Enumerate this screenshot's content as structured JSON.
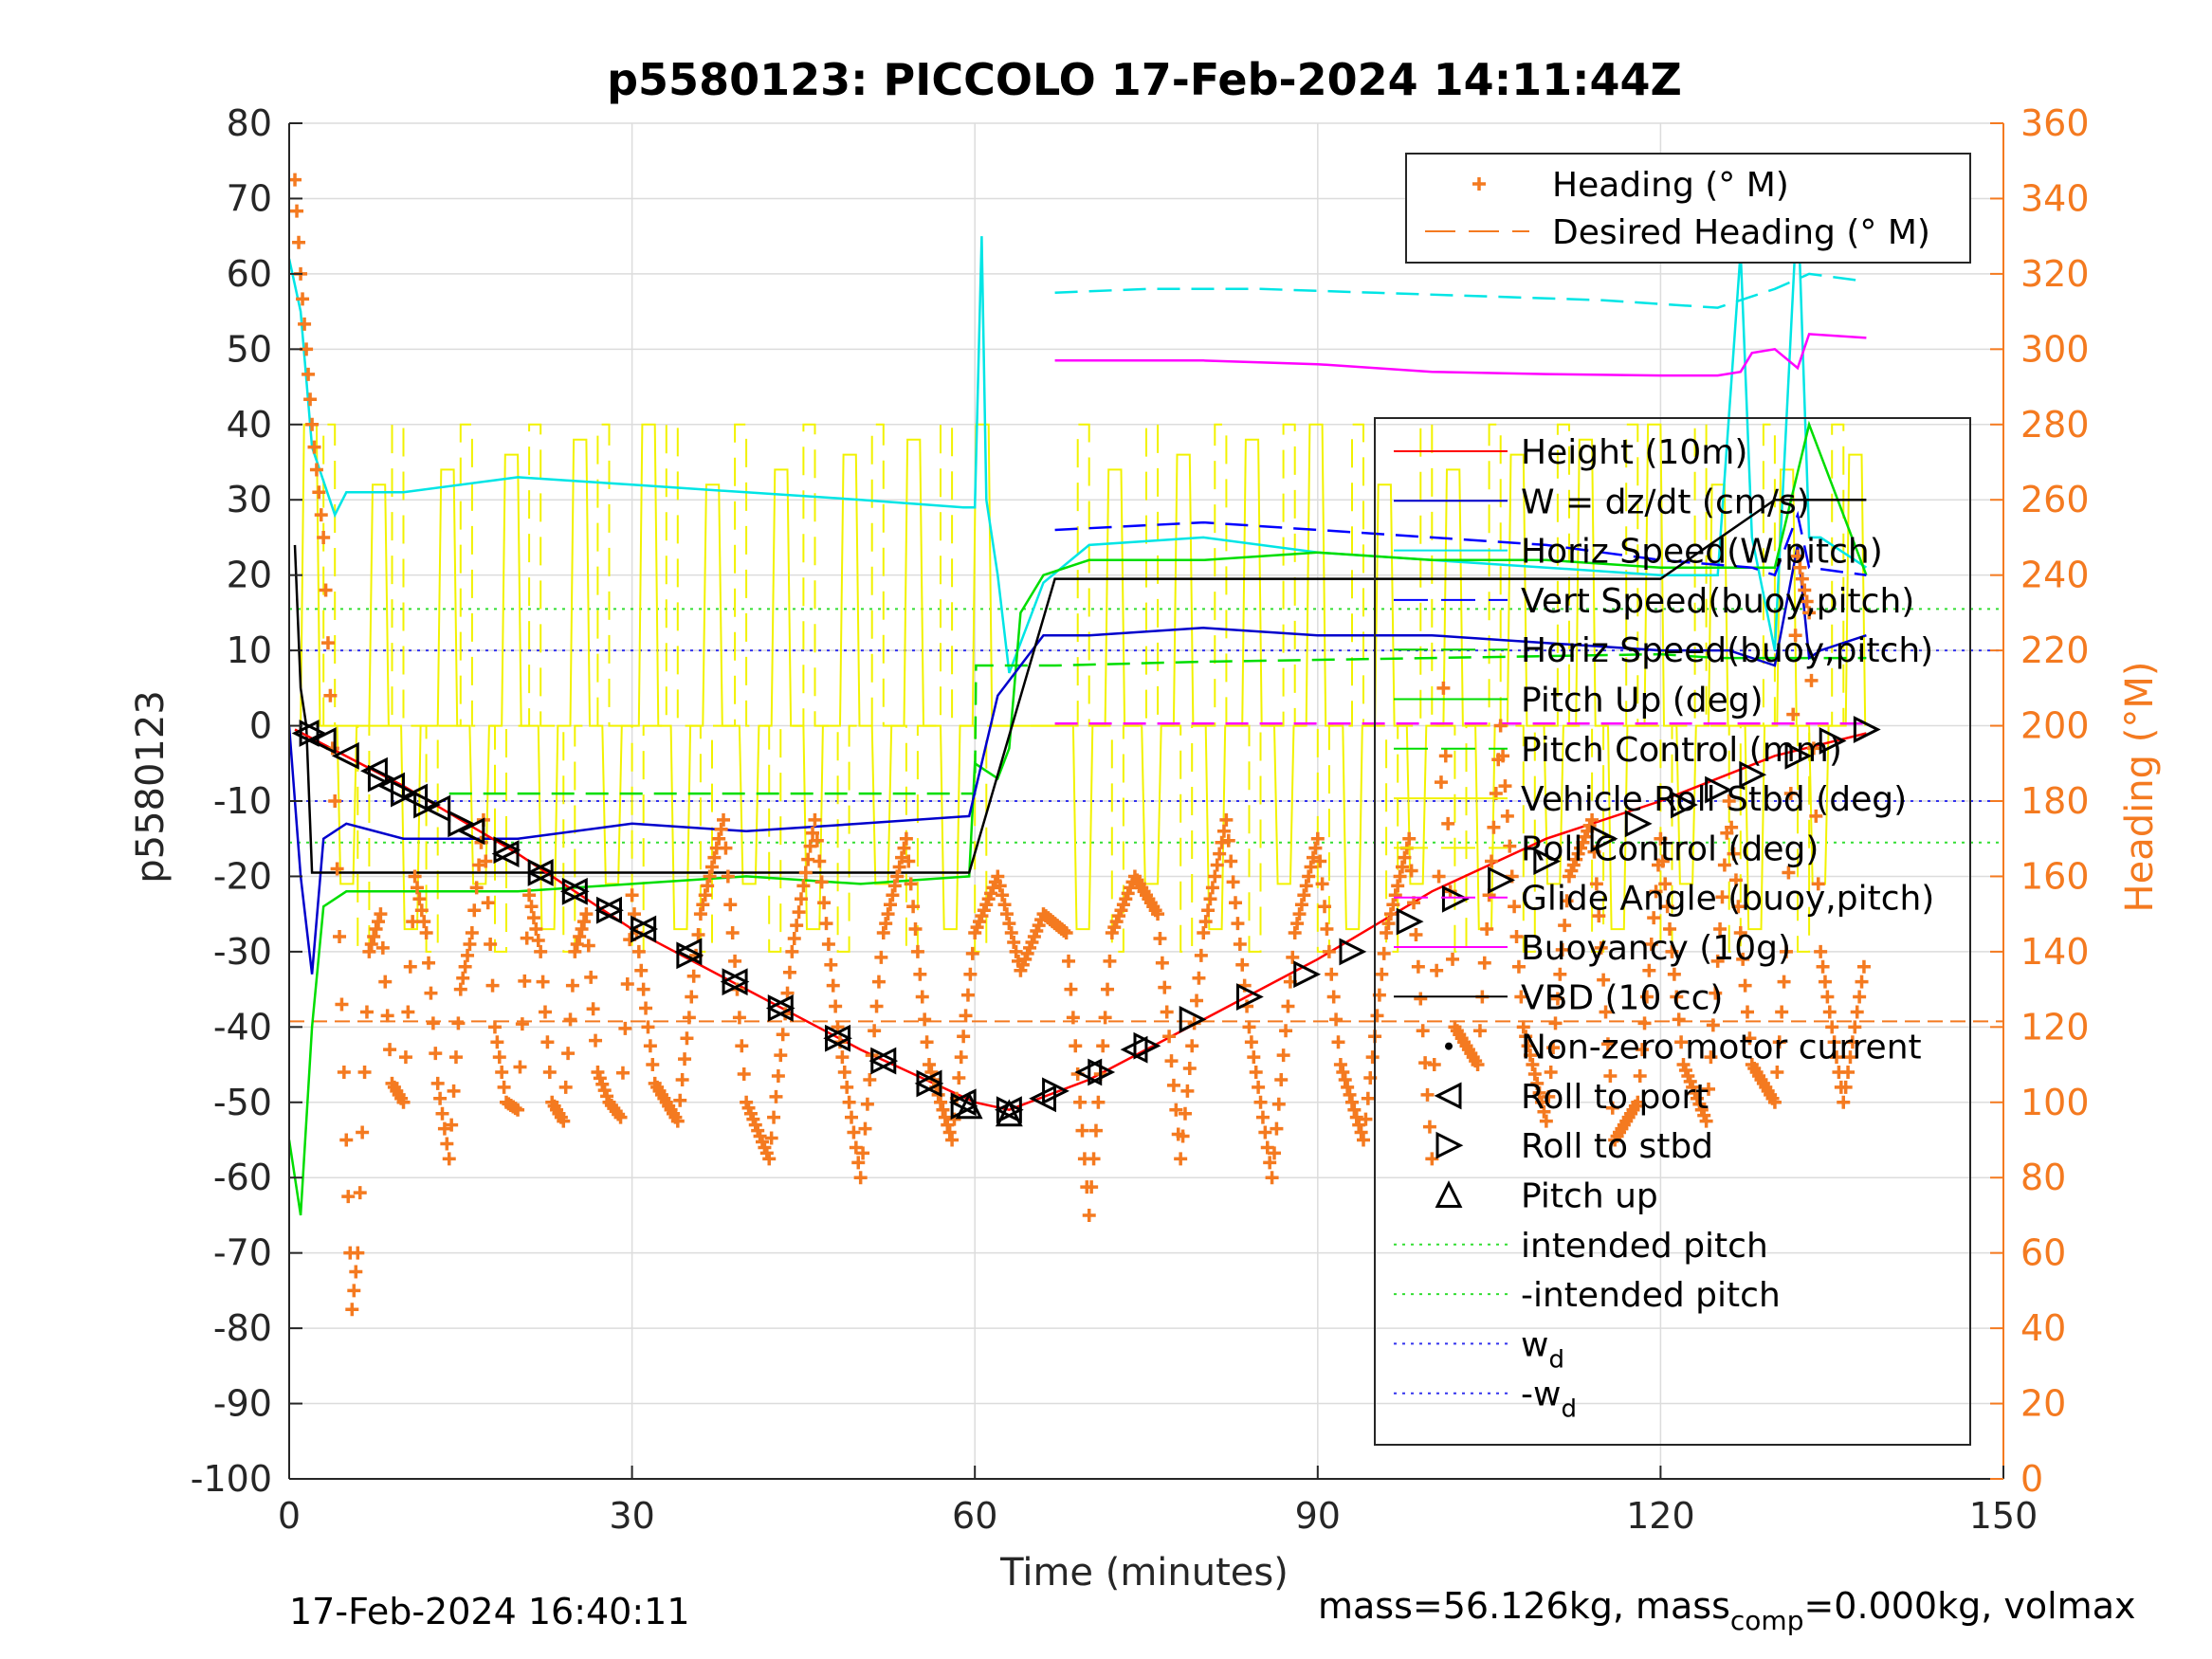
{
  "chart_data": {
    "type": "line",
    "title": "p5580123: PICCOLO 17-Feb-2024 14:11:44Z",
    "xlabel": "Time (minutes)",
    "ylabel": "p5580123",
    "y2label": "Heading (°M)",
    "xlim": [
      0,
      150
    ],
    "ylim": [
      -100,
      80
    ],
    "y2lim": [
      0,
      360
    ],
    "xticks": [
      0,
      30,
      60,
      90,
      120,
      150
    ],
    "yticks": [
      -100,
      -90,
      -80,
      -70,
      -60,
      -50,
      -40,
      -30,
      -20,
      -10,
      0,
      10,
      20,
      30,
      40,
      50,
      60,
      70,
      80
    ],
    "y2ticks": [
      0,
      20,
      40,
      60,
      80,
      100,
      120,
      140,
      160,
      180,
      200,
      220,
      240,
      260,
      280,
      300,
      320,
      340,
      360
    ],
    "grid": true,
    "colors": {
      "heading": "#F47A20",
      "desired_heading": "#F47A20",
      "height": "#FF0000",
      "w": "#0000CC",
      "horiz_speed_w": "#00E5E5",
      "vert_speed_buoy": "#0000FF",
      "horiz_speed_buoy": "#00CC00",
      "pitch_up": "#00DD00",
      "pitch_control": "#00DD00",
      "vehicle_roll": "#F2F200",
      "roll_control": "#F2F200",
      "glide_angle": "#FF00FF",
      "buoyancy": "#FF00FF",
      "vbd": "#000000",
      "intended_pitch": "#33DD33",
      "wd": "#3333EE"
    },
    "heading_legend": {
      "placement": "top-right",
      "entries": [
        "Heading (° M)",
        "Desired Heading (° M)"
      ]
    },
    "legend": {
      "placement": "right",
      "entries": [
        {
          "label": "Height (10m)"
        },
        {
          "label": "W = dz/dt (cm/s)"
        },
        {
          "label": "Horiz Speed(W,pitch)"
        },
        {
          "label": "Vert Speed(buoy,pitch)"
        },
        {
          "label": "Horiz Speed(buoy,pitch)"
        },
        {
          "label": "Pitch Up (deg)"
        },
        {
          "label": "Pitch Control (mm)"
        },
        {
          "label": "Vehicle Roll Stbd (deg)"
        },
        {
          "label": "Roll Control (deg)"
        },
        {
          "label": "Glide Angle (buoy,pitch)"
        },
        {
          "label": "Buoyancy (10g)"
        },
        {
          "label": "VBD (10 cc)"
        },
        {
          "label": "Non-zero motor current"
        },
        {
          "label": "Roll to port"
        },
        {
          "label": "Roll to stbd"
        },
        {
          "label": "Pitch up"
        },
        {
          "label": "intended pitch"
        },
        {
          "label": "-intended pitch"
        },
        {
          "label": "w",
          "sub": "d"
        },
        {
          "label": "-w",
          "sub": "d"
        }
      ]
    },
    "series": [
      {
        "name": "Height (10m)",
        "x": [
          0.5,
          10,
          20,
          30,
          40,
          50,
          60,
          63,
          70,
          80,
          90,
          100,
          110,
          120,
          130,
          138
        ],
        "values": [
          -0.5,
          -8,
          -17,
          -27,
          -35,
          -43,
          -50,
          -51,
          -47,
          -39,
          -31,
          -22,
          -15,
          -10,
          -4,
          -1
        ]
      },
      {
        "name": "W = dz/dt (cm/s)",
        "x": [
          0,
          1,
          2,
          3,
          5,
          10,
          20,
          30,
          40,
          50,
          59.5,
          62,
          66,
          70,
          80,
          90,
          100,
          110,
          120,
          126,
          130,
          132,
          133,
          134,
          138
        ],
        "values": [
          0,
          -20,
          -33,
          -15,
          -13,
          -15,
          -15,
          -13,
          -14,
          -13,
          -12,
          4,
          12,
          12,
          13,
          12,
          12,
          11,
          10,
          10,
          8,
          24,
          9,
          10,
          12
        ]
      },
      {
        "name": "Horiz Speed(W,pitch)",
        "x": [
          0,
          1,
          2,
          4,
          5,
          10,
          20,
          30,
          40,
          50,
          59,
          60,
          60.6,
          61,
          62,
          63,
          66,
          70,
          80,
          90,
          100,
          110,
          120,
          125,
          127,
          128,
          130,
          132,
          133,
          134,
          138
        ],
        "values": [
          62,
          55,
          37,
          28,
          31,
          31,
          33,
          32,
          31,
          30,
          29,
          29,
          65,
          30,
          20,
          7,
          19,
          24,
          25,
          23,
          22,
          21,
          20,
          20,
          63,
          25,
          10,
          70,
          25,
          25,
          21
        ]
      },
      {
        "name": "Vert Speed(buoy,pitch)",
        "x": [
          67,
          80,
          90,
          100,
          110,
          120,
          128,
          130,
          132,
          133,
          138
        ],
        "values": [
          26,
          27,
          26,
          25,
          24,
          22,
          21,
          20,
          28,
          21,
          20
        ]
      },
      {
        "name": "Horiz Speed(buoy,pitch)",
        "x": [
          67,
          75,
          85,
          95,
          105,
          115,
          125,
          130,
          133,
          138
        ],
        "values": [
          57.5,
          58,
          58,
          57.5,
          57,
          56.5,
          55.5,
          58,
          60,
          59
        ]
      },
      {
        "name": "Pitch Up (deg)",
        "x": [
          0,
          1,
          2,
          3,
          5,
          10,
          20,
          30,
          40,
          50,
          59.5,
          60,
          62,
          63,
          64,
          66,
          70,
          80,
          90,
          100,
          110,
          120,
          130,
          133,
          138
        ],
        "values": [
          -55,
          -65,
          -40,
          -24,
          -22,
          -22,
          -22,
          -21,
          -20,
          -21,
          -20,
          -5,
          -7,
          -3,
          15,
          20,
          22,
          22,
          23,
          22,
          22,
          21,
          21,
          40,
          20
        ]
      },
      {
        "name": "Pitch Control (mm)",
        "x": [
          14,
          60,
          60.1,
          67,
          80,
          100,
          120,
          125,
          138
        ],
        "values": [
          -9,
          -9,
          8,
          8,
          8.5,
          9,
          9.5,
          9,
          9
        ]
      },
      {
        "name": "Glide Angle (buoy,pitch)",
        "x": [
          67,
          80,
          90,
          100,
          110,
          120,
          125,
          127,
          128,
          130,
          132,
          133,
          138
        ],
        "values": [
          48.5,
          48.5,
          48,
          47,
          46.7,
          46.5,
          46.5,
          47,
          49.5,
          50,
          47.5,
          52,
          51.5
        ]
      },
      {
        "name": "Buoyancy (10g)",
        "x": [
          67,
          138
        ],
        "values": [
          0.3,
          0.3
        ]
      },
      {
        "name": "VBD (10 cc)",
        "x": [
          0.5,
          1,
          1.5,
          2,
          10,
          30,
          50,
          59.5,
          67,
          80,
          100,
          120,
          130,
          138
        ],
        "values": [
          24,
          5,
          0,
          -19.5,
          -19.5,
          -19.5,
          -19.5,
          -19.5,
          19.5,
          19.5,
          19.5,
          19.5,
          30,
          30
        ]
      },
      {
        "name": "Heading (° M)",
        "x": [
          0.5,
          1,
          1.5,
          2,
          3,
          4,
          5,
          5.5,
          6,
          7,
          8,
          9,
          10,
          11,
          12,
          13,
          14,
          15,
          16,
          17,
          18,
          19,
          20,
          21,
          22,
          23,
          24,
          25,
          26,
          27,
          28,
          29,
          30,
          32,
          34,
          36,
          38,
          40,
          42,
          44,
          46,
          48,
          50,
          52,
          54,
          56,
          58,
          60,
          62,
          64,
          66,
          68,
          70,
          72,
          74,
          76,
          78,
          80,
          82,
          84,
          86,
          88,
          90,
          92,
          94,
          96,
          98,
          100,
          101,
          102,
          104,
          106,
          108,
          110,
          112,
          114,
          116,
          118,
          120,
          122,
          124,
          126,
          128,
          130,
          131,
          132,
          133,
          134,
          136,
          137,
          138
        ],
        "values": [
          345,
          320,
          300,
          280,
          250,
          180,
          90,
          45,
          60,
          140,
          150,
          105,
          100,
          160,
          145,
          105,
          85,
          130,
          145,
          175,
          120,
          100,
          98,
          155,
          140,
          100,
          95,
          140,
          150,
          108,
          100,
          96,
          155,
          105,
          95,
          150,
          175,
          100,
          85,
          140,
          175,
          120,
          80,
          145,
          170,
          110,
          90,
          145,
          160,
          135,
          150,
          145,
          70,
          145,
          160,
          150,
          85,
          145,
          175,
          120,
          80,
          145,
          170,
          110,
          90,
          145,
          170,
          85,
          210,
          120,
          110,
          200,
          120,
          95,
          160,
          175,
          90,
          100,
          170,
          110,
          95,
          180,
          110,
          100,
          140,
          245,
          230,
          140,
          100,
          120,
          140
        ]
      },
      {
        "name": "Desired Heading (° M)",
        "x": [
          0,
          150
        ],
        "values": [
          121.5,
          121.5
        ]
      },
      {
        "name": "Roll to port",
        "x": [
          1.5,
          3,
          5,
          7.5,
          9,
          11,
          13,
          16,
          19,
          22,
          25,
          28,
          31,
          35,
          39,
          43,
          48,
          52,
          56,
          59,
          63,
          66,
          70,
          74
        ],
        "values": [
          -1,
          -2,
          -4,
          -6,
          -8,
          -9.5,
          -11,
          -14,
          -17,
          -19.5,
          -22,
          -24.5,
          -27,
          -30,
          -34,
          -37.5,
          -41.5,
          -44.5,
          -47.5,
          -50,
          -51,
          -49.5,
          -46,
          -43
        ]
      },
      {
        "name": "Roll to stbd",
        "x": [
          2,
          8,
          10,
          12,
          15,
          19,
          22,
          25,
          28,
          31,
          35,
          39,
          43,
          48,
          52,
          56,
          59,
          63,
          67,
          71,
          75,
          79,
          84,
          89,
          93,
          98,
          102,
          106,
          110,
          115,
          118,
          122,
          125,
          128,
          132,
          135,
          138
        ],
        "values": [
          -1,
          -7,
          -9,
          -10.5,
          -13,
          -16.5,
          -19.5,
          -22,
          -24.5,
          -27,
          -30.5,
          -34,
          -37.5,
          -41.5,
          -44.5,
          -47.5,
          -50.5,
          -51,
          -48.5,
          -46,
          -42.5,
          -39,
          -36,
          -33,
          -30,
          -26,
          -23,
          -20.5,
          -18,
          -15,
          -13,
          -10.5,
          -8.5,
          -6.5,
          -4,
          -2,
          -0.5
        ]
      },
      {
        "name": "Pitch up",
        "x": [
          59.5,
          63
        ],
        "values": [
          -50.5,
          -51.5
        ]
      },
      {
        "name": "intended pitch",
        "x": [
          0,
          150
        ],
        "values": [
          15.5,
          15.5
        ]
      },
      {
        "name": "-intended pitch",
        "x": [
          0,
          150
        ],
        "values": [
          -15.5,
          -15.5
        ]
      },
      {
        "name": "w_d",
        "x": [
          0,
          150
        ],
        "values": [
          10,
          10
        ]
      },
      {
        "name": "-w_d",
        "x": [
          0,
          150
        ],
        "values": [
          -10,
          -10
        ]
      }
    ],
    "roll_switching": {
      "name": "Vehicle Roll Stbd (deg)",
      "levels": [
        0,
        40,
        -30,
        15,
        -15
      ]
    }
  },
  "footer": {
    "timestamp": "17-Feb-2024 16:40:11",
    "mass_prefix": "mass=56.126kg, mass",
    "mass_sub": "comp",
    "mass_suffix": "=0.000kg, volmax"
  }
}
